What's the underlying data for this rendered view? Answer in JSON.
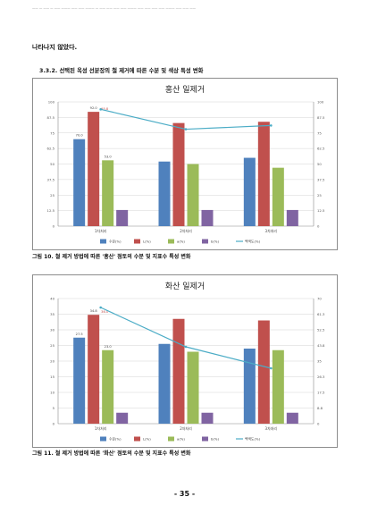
{
  "document": {
    "header": "—— — —— — —— ——— —— —— ——— — —— —— —— —— ——— —— —— —— —— ——— —— —— ——",
    "paragraph_tail": "나타나지 않았다.",
    "section_heading": "3.3.2. 선택된 옥성 선분장의 철 제거에 따른 수분 및 색상 특성 변화",
    "figure10_caption": "그림 10. 철 제거 방법에 따른 '홍산' 점토의 수분 및 지표수 특성 변화",
    "figure11_caption": "그림 11. 철 제거 방법에 따른 '화산' 점토의 수분 및 지표수 특성 변화",
    "page_number": "- 35 -"
  },
  "colors": {
    "blue": "#4f81bd",
    "red": "#c0504d",
    "green": "#9bbb59",
    "purple": "#8064a2",
    "line": "#4bacc6"
  },
  "chart_data": [
    {
      "type": "bar",
      "title": "홍산 일제거",
      "categories": [
        "1차처리",
        "2차처리",
        "3차처리"
      ],
      "ylim": [
        0,
        100
      ],
      "y2lim": [
        0,
        100
      ],
      "series": [
        {
          "name": "수분(%)",
          "color": "blue",
          "values": [
            70,
            52,
            55
          ]
        },
        {
          "name": "L(%)",
          "color": "red",
          "values": [
            92,
            83,
            84
          ]
        },
        {
          "name": "a(%)",
          "color": "green",
          "values": [
            53,
            50,
            47
          ]
        },
        {
          "name": "b(%)",
          "color": "purple",
          "values": [
            13,
            13,
            13
          ]
        },
        {
          "name": "백색도(%)",
          "color": "line",
          "axis": "secondary",
          "values": [
            94,
            78,
            81
          ]
        }
      ],
      "data_labels": [
        "70.0",
        "92.0",
        "95.8",
        "53.0"
      ],
      "legend": "bottom",
      "grid": true
    },
    {
      "type": "bar",
      "title": "화산 일제거",
      "categories": [
        "1차처리",
        "2차처리",
        "3차처리"
      ],
      "ylim": [
        0,
        40
      ],
      "y2lim": [
        0,
        70
      ],
      "series": [
        {
          "name": "수분(%)",
          "color": "blue",
          "values": [
            27.5,
            25.5,
            24.0
          ]
        },
        {
          "name": "L(%)",
          "color": "red",
          "values": [
            34.8,
            33.5,
            33.0
          ]
        },
        {
          "name": "a(%)",
          "color": "green",
          "values": [
            23.5,
            23.0,
            23.5
          ]
        },
        {
          "name": "b(%)",
          "color": "purple",
          "values": [
            3.5,
            3.5,
            3.5
          ]
        },
        {
          "name": "백색도(%)",
          "color": "line",
          "axis": "secondary",
          "values": [
            65,
            43,
            31
          ]
        }
      ],
      "data_labels": [
        "27.5",
        "34.8",
        "36.0",
        "23.0"
      ],
      "legend": "bottom",
      "grid": true
    }
  ]
}
